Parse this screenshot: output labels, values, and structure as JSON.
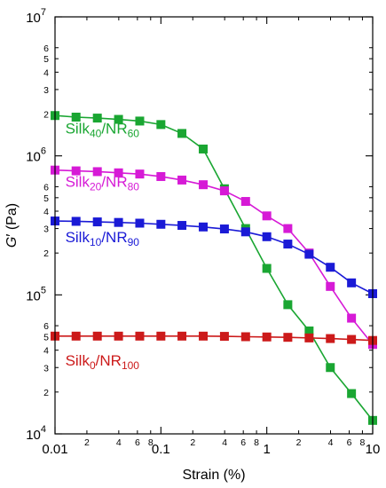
{
  "chart_data": {
    "type": "line",
    "title": "",
    "xlabel": "Strain (%)",
    "ylabel": {
      "main": "G",
      "prime": "′",
      "unit": " (Pa)"
    },
    "xscale": "log",
    "yscale": "log",
    "xlim": [
      0.01,
      10
    ],
    "ylim": [
      10000,
      10000000
    ],
    "grid": false,
    "x_major_ticks": [
      {
        "value": 0.01,
        "label": "0.01"
      },
      {
        "value": 0.1,
        "label": "0.1"
      },
      {
        "value": 1,
        "label": "1"
      },
      {
        "value": 10,
        "label": "10"
      }
    ],
    "x_minor_ticks": [
      {
        "value": 0.02,
        "label": "2"
      },
      {
        "value": 0.04,
        "label": "4"
      },
      {
        "value": 0.06,
        "label": "6"
      },
      {
        "value": 0.08,
        "label": "8"
      },
      {
        "value": 0.2,
        "label": "2"
      },
      {
        "value": 0.4,
        "label": "4"
      },
      {
        "value": 0.6,
        "label": "6"
      },
      {
        "value": 0.8,
        "label": "8"
      },
      {
        "value": 2,
        "label": "2"
      },
      {
        "value": 4,
        "label": "4"
      },
      {
        "value": 6,
        "label": "6"
      },
      {
        "value": 8,
        "label": "8"
      }
    ],
    "y_major_ticks": [
      {
        "value": 10000,
        "base": "10",
        "exp": "4"
      },
      {
        "value": 100000,
        "base": "10",
        "exp": "5"
      },
      {
        "value": 1000000,
        "base": "10",
        "exp": "6"
      },
      {
        "value": 10000000,
        "base": "10",
        "exp": "7"
      }
    ],
    "y_minor_ticks": [
      {
        "value": 20000,
        "label": "2"
      },
      {
        "value": 30000,
        "label": "3"
      },
      {
        "value": 40000,
        "label": "4"
      },
      {
        "value": 50000,
        "label": "5"
      },
      {
        "value": 60000,
        "label": "6"
      },
      {
        "value": 200000,
        "label": "2"
      },
      {
        "value": 300000,
        "label": "3"
      },
      {
        "value": 400000,
        "label": "4"
      },
      {
        "value": 500000,
        "label": "5"
      },
      {
        "value": 600000,
        "label": "6"
      },
      {
        "value": 2000000,
        "label": "2"
      },
      {
        "value": 3000000,
        "label": "3"
      },
      {
        "value": 4000000,
        "label": "4"
      },
      {
        "value": 5000000,
        "label": "5"
      },
      {
        "value": 6000000,
        "label": "6"
      }
    ],
    "series": [
      {
        "name": "Silk40/NR60",
        "label_parts": [
          "Silk",
          "40",
          "/NR",
          "60"
        ],
        "color": "#1aa632",
        "label_anchor": {
          "x": 0.0125,
          "y": 1450000
        },
        "x": [
          0.01,
          0.0158,
          0.0251,
          0.0398,
          0.0631,
          0.1,
          0.158,
          0.251,
          0.398,
          0.631,
          1,
          1.58,
          2.51,
          3.98,
          6.31,
          10
        ],
        "y": [
          1950000,
          1900000,
          1870000,
          1830000,
          1780000,
          1680000,
          1450000,
          1120000,
          580000,
          300000,
          155000,
          85000,
          55000,
          30000,
          19500,
          12500
        ]
      },
      {
        "name": "Silk20/NR80",
        "label_parts": [
          "Silk",
          "20",
          "/NR",
          "80"
        ],
        "color": "#d61ad6",
        "label_anchor": {
          "x": 0.0125,
          "y": 600000
        },
        "x": [
          0.01,
          0.0158,
          0.0251,
          0.0398,
          0.0631,
          0.1,
          0.158,
          0.251,
          0.398,
          0.631,
          1,
          1.58,
          2.51,
          3.98,
          6.31,
          10
        ],
        "y": [
          790000,
          780000,
          770000,
          755000,
          740000,
          710000,
          670000,
          620000,
          560000,
          470000,
          370000,
          300000,
          200000,
          115000,
          68000,
          44000
        ]
      },
      {
        "name": "Silk10/NR90",
        "label_parts": [
          "Silk",
          "10",
          "/NR",
          "90"
        ],
        "color": "#1a1ad6",
        "label_anchor": {
          "x": 0.0125,
          "y": 240000
        },
        "x": [
          0.01,
          0.0158,
          0.0251,
          0.0398,
          0.0631,
          0.1,
          0.158,
          0.251,
          0.398,
          0.631,
          1,
          1.58,
          2.51,
          3.98,
          6.31,
          10
        ],
        "y": [
          340000,
          338000,
          335000,
          332000,
          328000,
          322000,
          316000,
          308000,
          298000,
          284000,
          262000,
          232000,
          196000,
          158000,
          122000,
          102000
        ]
      },
      {
        "name": "Silk0/NR100",
        "label_parts": [
          "Silk",
          "0",
          "/NR",
          "100"
        ],
        "color": "#cc1a1a",
        "label_anchor": {
          "x": 0.0125,
          "y": 31000
        },
        "x": [
          0.01,
          0.0158,
          0.0251,
          0.0398,
          0.0631,
          0.1,
          0.158,
          0.251,
          0.398,
          0.631,
          1,
          1.58,
          2.51,
          3.98,
          6.31,
          10
        ],
        "y": [
          50500,
          50500,
          50500,
          50500,
          50500,
          50500,
          50500,
          50500,
          50300,
          50000,
          49800,
          49500,
          49000,
          48500,
          47800,
          47000
        ]
      }
    ]
  }
}
